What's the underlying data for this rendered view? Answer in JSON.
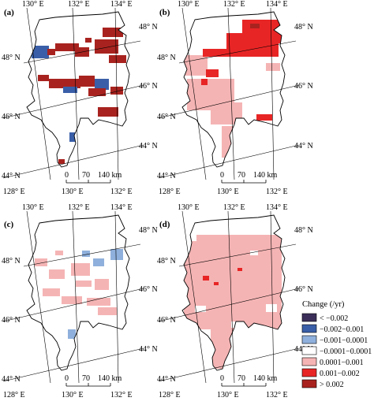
{
  "panels": [
    {
      "label": "(a)",
      "top_labels": [
        "130° E",
        "132° E",
        "134° E"
      ],
      "bottom_labels": [
        "128° E",
        "130° E",
        "132° E"
      ],
      "left_labels": [
        "48° N",
        "46° N",
        "44° N"
      ],
      "right_labels": [
        "48° N",
        "46° N",
        "44° N"
      ]
    },
    {
      "label": "(b)",
      "top_labels": [
        "130° E",
        "132° E",
        "134° E"
      ],
      "bottom_labels": [
        "128° E",
        "130° E",
        "132° E"
      ],
      "left_labels": [
        "48° N",
        "46° N",
        "44° N"
      ],
      "right_labels": [
        "48° N",
        "46° N",
        "44° N"
      ]
    },
    {
      "label": "(c)",
      "top_labels": [
        "130° E",
        "132° E",
        "134° E"
      ],
      "bottom_labels": [
        "128° E",
        "130° E",
        "132° E"
      ],
      "left_labels": [
        "48° N",
        "46° N",
        "44° N"
      ],
      "right_labels": [
        "48° N",
        "46° N",
        "44° N"
      ]
    },
    {
      "label": "(d)",
      "top_labels": [
        "130° E",
        "132° E",
        "134° E"
      ],
      "bottom_labels": [
        "128° E",
        "130° E",
        "132° E"
      ],
      "left_labels": [
        "48° N",
        "46° N",
        "44° N"
      ],
      "right_labels": [
        "48° N",
        "46° N",
        "44° N"
      ]
    }
  ],
  "scale_bar": {
    "labels": [
      "0",
      "70",
      "140 km"
    ]
  },
  "legend": {
    "title": "Change (/yr)",
    "items": [
      {
        "label": "< −0.002",
        "color": "#3b2f5a"
      },
      {
        "label": "−0.002−0.001",
        "color": "#3a5fa8"
      },
      {
        "label": "−0.001−0.0001",
        "color": "#8fb0dc"
      },
      {
        "label": "−0.0001−0.0001",
        "color": "#ffffff"
      },
      {
        "label": "0.0001−0.001",
        "color": "#f5b4b4"
      },
      {
        "label": "0.001−0.002",
        "color": "#e82525"
      },
      {
        "label": "> 0.002",
        "color": "#a8231f"
      }
    ]
  }
}
